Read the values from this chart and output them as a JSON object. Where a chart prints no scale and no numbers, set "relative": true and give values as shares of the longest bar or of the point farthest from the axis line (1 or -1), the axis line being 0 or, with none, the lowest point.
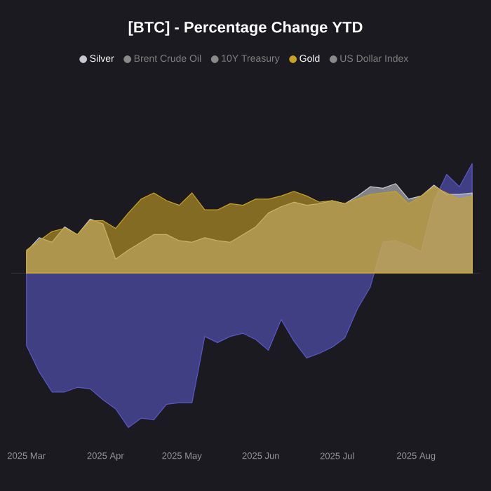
{
  "chart_data": {
    "type": "area",
    "title": "[BTC] - Percentage Change YTD",
    "relative": true,
    "legend": "top",
    "x": [
      "2025-03-01",
      "2025-03-06",
      "2025-03-11",
      "2025-03-16",
      "2025-03-21",
      "2025-03-26",
      "2025-03-31",
      "2025-04-05",
      "2025-04-10",
      "2025-04-15",
      "2025-04-20",
      "2025-04-25",
      "2025-04-30",
      "2025-05-05",
      "2025-05-10",
      "2025-05-15",
      "2025-05-20",
      "2025-05-25",
      "2025-05-30",
      "2025-06-04",
      "2025-06-09",
      "2025-06-14",
      "2025-06-19",
      "2025-06-24",
      "2025-06-29",
      "2025-07-04",
      "2025-07-09",
      "2025-07-14",
      "2025-07-19",
      "2025-07-24",
      "2025-07-29",
      "2025-08-03",
      "2025-08-08",
      "2025-08-13",
      "2025-08-18",
      "2025-08-23"
    ],
    "xlim": [
      "2025-02-23",
      "2025-08-26"
    ],
    "xticks": [
      {
        "value": "2025-03-01",
        "label": "2025 Mar"
      },
      {
        "value": "2025-04-01",
        "label": "2025 Apr"
      },
      {
        "value": "2025-05-01",
        "label": "2025 May"
      },
      {
        "value": "2025-06-01",
        "label": "2025 Jun"
      },
      {
        "value": "2025-07-01",
        "label": "2025 Jul"
      },
      {
        "value": "2025-08-01",
        "label": "2025 Aug"
      }
    ],
    "series": [
      {
        "color": "#5a58c8",
        "values": [
          -0.47,
          -0.64,
          -0.77,
          -0.77,
          -0.74,
          -0.75,
          -0.82,
          -0.88,
          -1.0,
          -0.94,
          -0.95,
          -0.85,
          -0.84,
          -0.84,
          -0.41,
          -0.45,
          -0.41,
          -0.39,
          -0.43,
          -0.5,
          -0.3,
          -0.44,
          -0.55,
          -0.52,
          -0.48,
          -0.42,
          -0.23,
          -0.09,
          0.2,
          0.21,
          0.18,
          0.14,
          0.47,
          0.64,
          0.56,
          0.71
        ]
      },
      {
        "name": "Silver",
        "color": "#c8c8d0",
        "values": [
          0.14,
          0.23,
          0.2,
          0.3,
          0.25,
          0.35,
          0.32,
          0.09,
          0.15,
          0.2,
          0.25,
          0.25,
          0.21,
          0.2,
          0.23,
          0.21,
          0.2,
          0.25,
          0.3,
          0.39,
          0.43,
          0.46,
          0.44,
          0.45,
          0.47,
          0.45,
          0.5,
          0.56,
          0.55,
          0.58,
          0.48,
          0.5,
          0.57,
          0.51,
          0.51,
          0.52
        ]
      },
      {
        "name": "Brent Crude Oil",
        "color": "#8a8a8a",
        "values": [
          null,
          null,
          null,
          null,
          null,
          null,
          null,
          null,
          null,
          null,
          null,
          null,
          null,
          null,
          null,
          null,
          null,
          null,
          null,
          null,
          null,
          null,
          null,
          null,
          null,
          null,
          null,
          null,
          null,
          null,
          null,
          null,
          null,
          null,
          null,
          null
        ]
      },
      {
        "name": "10Y Treasury",
        "color": "#8a8a8a",
        "values": [
          null,
          null,
          null,
          null,
          null,
          null,
          null,
          null,
          null,
          null,
          null,
          null,
          null,
          null,
          null,
          null,
          null,
          null,
          null,
          null,
          null,
          null,
          null,
          null,
          null,
          null,
          null,
          null,
          null,
          null,
          null,
          null,
          null,
          null,
          null,
          null
        ]
      },
      {
        "name": "Gold",
        "color": "#c9a227",
        "values": [
          0.15,
          0.21,
          0.27,
          0.29,
          0.25,
          0.34,
          0.34,
          0.29,
          0.39,
          0.48,
          0.52,
          0.47,
          0.44,
          0.52,
          0.41,
          0.41,
          0.45,
          0.44,
          0.48,
          0.48,
          0.5,
          0.53,
          0.5,
          0.46,
          0.47,
          0.45,
          0.48,
          0.51,
          0.52,
          0.53,
          0.45,
          0.5,
          0.56,
          0.52,
          0.48,
          0.5
        ]
      },
      {
        "name": "US Dollar Index",
        "color": "#8a8a8a",
        "values": [
          null,
          null,
          null,
          null,
          null,
          null,
          null,
          null,
          null,
          null,
          null,
          null,
          null,
          null,
          null,
          null,
          null,
          null,
          null,
          null,
          null,
          null,
          null,
          null,
          null,
          null,
          null,
          null,
          null,
          null,
          null,
          null,
          null,
          null,
          null,
          null
        ]
      }
    ]
  }
}
